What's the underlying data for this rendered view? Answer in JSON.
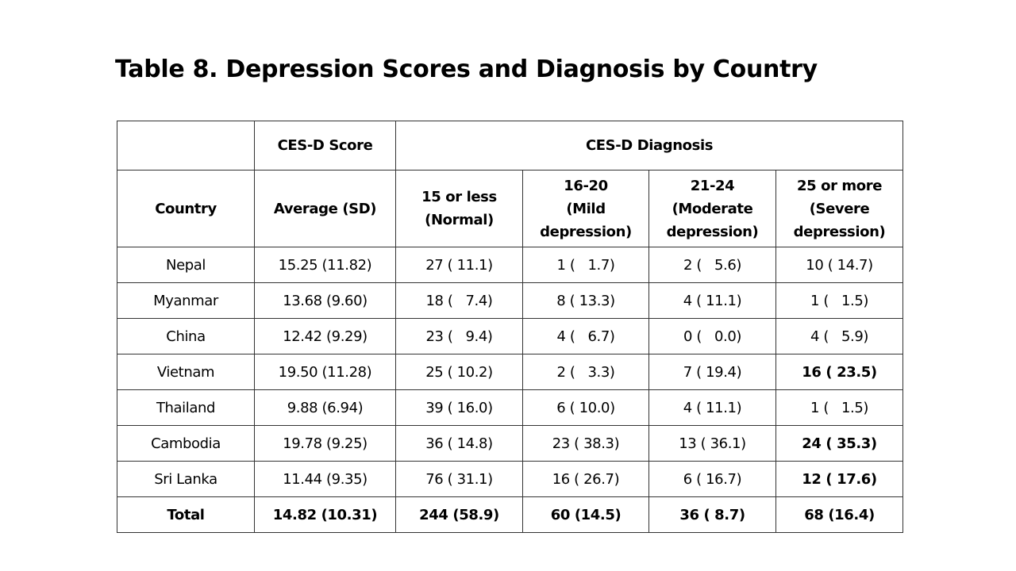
{
  "title": "Table 8. Depression Scores and Diagnosis by Country",
  "header": {
    "row1": {
      "blank": "",
      "score": "CES-D Score",
      "diagnosis": "CES-D Diagnosis"
    },
    "row2": {
      "country": "Country",
      "average": "Average (SD)",
      "cols": [
        {
          "range": "15 or less",
          "label": "(Normal)"
        },
        {
          "range": "16-20",
          "label": "(Mild depression)"
        },
        {
          "range": "21-24",
          "label": "(Moderate depression)"
        },
        {
          "range": "25 or more",
          "label": "(Severe depression)"
        }
      ]
    }
  },
  "rows": [
    {
      "country": "Nepal",
      "cells": [
        "15.25 (11.82)",
        "27 ( 11.1)",
        "1 (   1.7)",
        "2 (   5.6)",
        "10 ( 14.7)"
      ],
      "bold_last": false
    },
    {
      "country": "Myanmar",
      "cells": [
        "13.68 (9.60)",
        "18 (   7.4)",
        "8 ( 13.3)",
        "4 ( 11.1)",
        "1 (   1.5)"
      ],
      "bold_last": false
    },
    {
      "country": "China",
      "cells": [
        "12.42 (9.29)",
        "23 (   9.4)",
        "4 (   6.7)",
        "0 (   0.0)",
        "4 (   5.9)"
      ],
      "bold_last": false
    },
    {
      "country": "Vietnam",
      "cells": [
        "19.50 (11.28)",
        "25 ( 10.2)",
        "2 (   3.3)",
        "7 ( 19.4)",
        "16 ( 23.5)"
      ],
      "bold_last": true
    },
    {
      "country": "Thailand",
      "cells": [
        "9.88 (6.94)",
        "39 ( 16.0)",
        "6 ( 10.0)",
        "4 ( 11.1)",
        "1 (   1.5)"
      ],
      "bold_last": false
    },
    {
      "country": "Cambodia",
      "cells": [
        "19.78 (9.25)",
        "36 ( 14.8)",
        "23 ( 38.3)",
        "13 ( 36.1)",
        "24 ( 35.3)"
      ],
      "bold_last": true
    },
    {
      "country": "Sri Lanka",
      "cells": [
        "11.44 (9.35)",
        "76 ( 31.1)",
        "16 ( 26.7)",
        "6 ( 16.7)",
        "12 ( 17.6)"
      ],
      "bold_last": true
    }
  ],
  "total": {
    "country": "Total",
    "cells": [
      "14.82 (10.31)",
      "244 (58.9)",
      "60 (14.5)",
      "36 ( 8.7)",
      "68 (16.4)"
    ]
  }
}
